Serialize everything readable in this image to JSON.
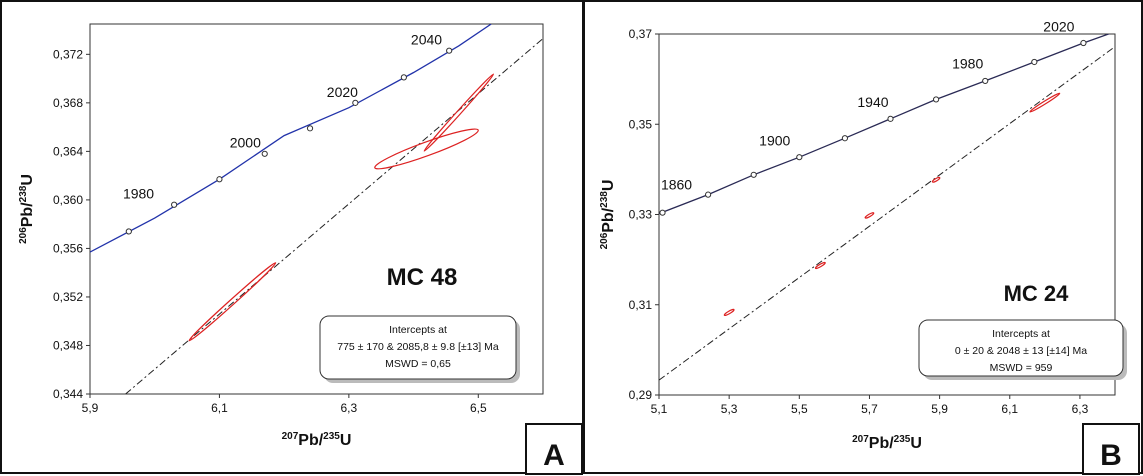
{
  "chart_data": [
    {
      "type": "scatter",
      "panel_label": "A",
      "sample": "MC 48",
      "xlabel": {
        "pre": "207",
        "main": "Pb/",
        "sup": "235",
        "post": "U"
      },
      "ylabel": {
        "pre": "206",
        "main": "Pb/",
        "sup": "238",
        "post": "U"
      },
      "xlim": [
        5.9,
        6.6
      ],
      "ylim": [
        0.344,
        0.3745
      ],
      "xticks": [
        5.9,
        6.1,
        6.3,
        6.5
      ],
      "xtick_labels": [
        "5,9",
        "6,1",
        "6,3",
        "6,5"
      ],
      "yticks": [
        0.344,
        0.348,
        0.352,
        0.356,
        0.36,
        0.364,
        0.368,
        0.372
      ],
      "ytick_labels": [
        "0,344",
        "0,348",
        "0,352",
        "0,356",
        "0,360",
        "0,364",
        "0,368",
        "0,372"
      ],
      "concordia_color": "#2233aa",
      "concordia": [
        [
          5.9,
          0.3557
        ],
        [
          6.0,
          0.3585
        ],
        [
          6.1,
          0.3617
        ],
        [
          6.2,
          0.3653
        ],
        [
          6.3,
          0.3676
        ],
        [
          6.4,
          0.3705
        ],
        [
          6.47,
          0.3727
        ],
        [
          6.52,
          0.3745
        ]
      ],
      "age_points": [
        [
          5.96,
          0.3574
        ],
        [
          6.03,
          0.3596
        ],
        [
          6.1,
          0.3617
        ],
        [
          6.17,
          0.3638
        ],
        [
          6.24,
          0.3659
        ],
        [
          6.31,
          0.368
        ],
        [
          6.385,
          0.3701
        ],
        [
          6.455,
          0.3723
        ]
      ],
      "age_labels": [
        {
          "text": "1980",
          "x": 5.975,
          "y": 0.3601
        },
        {
          "text": "2000",
          "x": 6.14,
          "y": 0.3643
        },
        {
          "text": "2020",
          "x": 6.29,
          "y": 0.3685
        },
        {
          "text": "2040",
          "x": 6.42,
          "y": 0.3728
        }
      ],
      "discordia": [
        [
          5.955,
          0.344
        ],
        [
          6.6,
          0.3733
        ]
      ],
      "ellipses": [
        {
          "x": 6.12,
          "y": 0.3516,
          "rx": 0.09,
          "ry": 0.0008,
          "angle_deg": -42
        },
        {
          "x": 6.42,
          "y": 0.3642,
          "rx": 0.085,
          "ry": 0.0021,
          "angle_deg": -20
        },
        {
          "x": 6.47,
          "y": 0.3672,
          "rx": 0.08,
          "ry": 0.0006,
          "angle_deg": -48
        }
      ],
      "ellipse_color": "#dd2222",
      "info": {
        "line1": "Intercepts at",
        "line2": "775 ± 170 & 2085,8 ± 9.8   [±13]  Ma",
        "line3": "MSWD = 0,65"
      }
    },
    {
      "type": "scatter",
      "panel_label": "B",
      "sample": "MC 24",
      "xlabel": {
        "pre": "207",
        "main": "Pb/",
        "sup": "235",
        "post": "U"
      },
      "ylabel": {
        "pre": "206",
        "main": "Pb/",
        "sup": "238",
        "post": "U"
      },
      "xlim": [
        5.1,
        6.4
      ],
      "ylim": [
        0.29,
        0.37
      ],
      "xticks": [
        5.1,
        5.3,
        5.5,
        5.7,
        5.9,
        6.1,
        6.3
      ],
      "xtick_labels": [
        "5,1",
        "5,3",
        "5,5",
        "5,7",
        "5,9",
        "6,1",
        "6,3"
      ],
      "yticks": [
        0.29,
        0.31,
        0.33,
        0.35,
        0.37
      ],
      "ytick_labels": [
        "0,29",
        "0,31",
        "0,33",
        "0,35",
        "0,37"
      ],
      "concordia_color": "#2a2a55",
      "concordia": [
        [
          5.1,
          0.3302
        ],
        [
          5.24,
          0.3344
        ],
        [
          5.37,
          0.3388
        ],
        [
          5.5,
          0.3427
        ],
        [
          5.63,
          0.3469
        ],
        [
          5.76,
          0.3512
        ],
        [
          5.89,
          0.3555
        ],
        [
          6.03,
          0.3596
        ],
        [
          6.17,
          0.3638
        ],
        [
          6.31,
          0.368
        ],
        [
          6.4,
          0.3705
        ]
      ],
      "age_points": [
        [
          5.11,
          0.3304
        ],
        [
          5.24,
          0.3344
        ],
        [
          5.37,
          0.3388
        ],
        [
          5.5,
          0.3427
        ],
        [
          5.63,
          0.3469
        ],
        [
          5.76,
          0.3512
        ],
        [
          5.89,
          0.3555
        ],
        [
          6.03,
          0.3596
        ],
        [
          6.17,
          0.3638
        ],
        [
          6.31,
          0.368
        ]
      ],
      "age_labels": [
        {
          "text": "1860",
          "x": 5.15,
          "y": 0.3355
        },
        {
          "text": "1900",
          "x": 5.43,
          "y": 0.3453
        },
        {
          "text": "1940",
          "x": 5.71,
          "y": 0.3538
        },
        {
          "text": "1980",
          "x": 5.98,
          "y": 0.3623
        },
        {
          "text": "2020",
          "x": 6.24,
          "y": 0.3705
        }
      ],
      "discordia": [
        [
          5.1,
          0.2933
        ],
        [
          6.4,
          0.3672
        ]
      ],
      "ellipses": [
        {
          "x": 5.3,
          "y": 0.3083,
          "rx": 0.016,
          "ry": 0.0005,
          "angle_deg": -30
        },
        {
          "x": 5.56,
          "y": 0.3187,
          "rx": 0.016,
          "ry": 0.0005,
          "angle_deg": -30
        },
        {
          "x": 5.7,
          "y": 0.3298,
          "rx": 0.014,
          "ry": 0.0005,
          "angle_deg": -30
        },
        {
          "x": 5.89,
          "y": 0.3377,
          "rx": 0.012,
          "ry": 0.0004,
          "angle_deg": -30
        },
        {
          "x": 6.2,
          "y": 0.3548,
          "rx": 0.05,
          "ry": 0.0008,
          "angle_deg": -32
        }
      ],
      "ellipse_color": "#dd2222",
      "info": {
        "line1": "Intercepts at",
        "line2": "0 ± 20 & 2048 ± 13   [±14]  Ma",
        "line3": "MSWD = 959"
      }
    }
  ]
}
